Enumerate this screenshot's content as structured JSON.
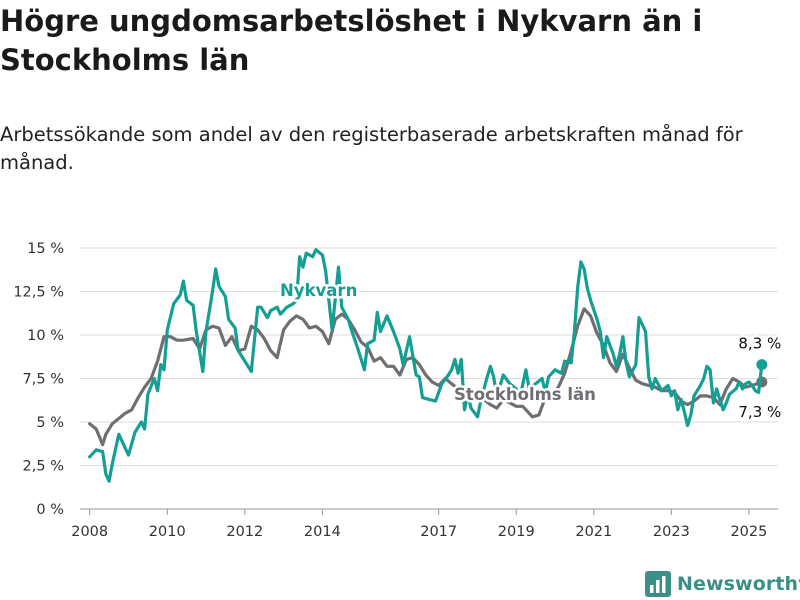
{
  "title": "Högre ungdomsarbetslöshet i Nykvarn än i Stockholms län",
  "subtitle": "Arbetssökande som andel av den registerbaserade arbetskraften månad för månad.",
  "logo_text": "Newsworthy",
  "colors": {
    "nykvarn": "#159e94",
    "stockholm": "#6e6e73",
    "grid": "#dddddd",
    "axis": "#999999",
    "logo": "#3c8f87"
  },
  "chart_data": {
    "type": "line",
    "title": "Högre ungdomsarbetslöshet i Nykvarn än i Stockholms län",
    "subtitle": "Arbetssökande som andel av den registerbaserade arbetskraften månad för månad.",
    "xlabel": "",
    "ylabel": "",
    "xlim": [
      "2007-10",
      "2025-10"
    ],
    "ylim": [
      0,
      15
    ],
    "grid": true,
    "y_ticks": [
      0,
      2.5,
      5,
      7.5,
      10,
      12.5,
      15
    ],
    "y_tick_labels": [
      "0 %",
      "2,5 %",
      "5 %",
      "7,5 %",
      "10 %",
      "12,5 %",
      "15 %"
    ],
    "x_ticks": [
      "2008-01",
      "2010-01",
      "2012-01",
      "2014-01",
      "2017-01",
      "2019-01",
      "2021-01",
      "2023-01",
      "2025-01"
    ],
    "x_tick_labels": [
      "2008",
      "2010",
      "2012",
      "2014",
      "2017",
      "2019",
      "2021",
      "2023",
      "2025"
    ],
    "series": [
      {
        "name": "Nykvarn",
        "color": "#159e94",
        "end_label": "8,3 %",
        "points": [
          [
            "2008-01",
            3.0
          ],
          [
            "2008-03",
            3.4
          ],
          [
            "2008-05",
            3.3
          ],
          [
            "2008-06",
            2.0
          ],
          [
            "2008-07",
            1.6
          ],
          [
            "2008-08",
            2.6
          ],
          [
            "2008-10",
            4.3
          ],
          [
            "2008-12",
            3.5
          ],
          [
            "2009-01",
            3.1
          ],
          [
            "2009-03",
            4.4
          ],
          [
            "2009-05",
            5.0
          ],
          [
            "2009-06",
            4.6
          ],
          [
            "2009-07",
            6.6
          ],
          [
            "2009-09",
            7.5
          ],
          [
            "2009-10",
            6.8
          ],
          [
            "2009-11",
            8.3
          ],
          [
            "2009-12",
            8.0
          ],
          [
            "2010-01",
            10.3
          ],
          [
            "2010-03",
            11.8
          ],
          [
            "2010-05",
            12.3
          ],
          [
            "2010-06",
            13.1
          ],
          [
            "2010-07",
            12.0
          ],
          [
            "2010-09",
            11.7
          ],
          [
            "2010-10",
            10.2
          ],
          [
            "2010-12",
            7.9
          ],
          [
            "2011-01",
            10.2
          ],
          [
            "2011-03",
            12.5
          ],
          [
            "2011-04",
            13.8
          ],
          [
            "2011-05",
            12.8
          ],
          [
            "2011-07",
            12.2
          ],
          [
            "2011-08",
            10.9
          ],
          [
            "2011-10",
            10.4
          ],
          [
            "2011-11",
            9.1
          ],
          [
            "2012-01",
            8.5
          ],
          [
            "2012-03",
            7.9
          ],
          [
            "2012-05",
            11.6
          ],
          [
            "2012-06",
            11.6
          ],
          [
            "2012-08",
            11.0
          ],
          [
            "2012-09",
            11.4
          ],
          [
            "2012-11",
            11.6
          ],
          [
            "2012-12",
            11.2
          ],
          [
            "2013-02",
            11.6
          ],
          [
            "2013-04",
            11.8
          ],
          [
            "2013-05",
            12.0
          ],
          [
            "2013-06",
            14.5
          ],
          [
            "2013-07",
            13.9
          ],
          [
            "2013-08",
            14.7
          ],
          [
            "2013-10",
            14.5
          ],
          [
            "2013-11",
            14.9
          ],
          [
            "2014-01",
            14.6
          ],
          [
            "2014-02",
            13.7
          ],
          [
            "2014-04",
            10.3
          ],
          [
            "2014-06",
            13.9
          ],
          [
            "2014-07",
            11.6
          ],
          [
            "2014-09",
            10.9
          ],
          [
            "2014-10",
            10.3
          ],
          [
            "2014-12",
            9.2
          ],
          [
            "2015-02",
            8.0
          ],
          [
            "2015-03",
            9.5
          ],
          [
            "2015-05",
            9.7
          ],
          [
            "2015-06",
            11.3
          ],
          [
            "2015-07",
            10.2
          ],
          [
            "2015-09",
            11.1
          ],
          [
            "2015-11",
            10.2
          ],
          [
            "2016-01",
            9.2
          ],
          [
            "2016-02",
            8.3
          ],
          [
            "2016-04",
            9.9
          ],
          [
            "2016-06",
            7.7
          ],
          [
            "2016-07",
            7.6
          ],
          [
            "2016-08",
            6.4
          ],
          [
            "2016-10",
            6.3
          ],
          [
            "2016-12",
            6.2
          ],
          [
            "2017-02",
            7.2
          ],
          [
            "2017-04",
            7.7
          ],
          [
            "2017-05",
            8.0
          ],
          [
            "2017-06",
            8.6
          ],
          [
            "2017-07",
            7.8
          ],
          [
            "2017-08",
            8.6
          ],
          [
            "2017-09",
            5.7
          ],
          [
            "2017-10",
            6.6
          ],
          [
            "2017-11",
            5.8
          ],
          [
            "2018-01",
            5.3
          ],
          [
            "2018-02",
            6.2
          ],
          [
            "2018-04",
            7.6
          ],
          [
            "2018-05",
            8.2
          ],
          [
            "2018-06",
            7.6
          ],
          [
            "2018-07",
            6.5
          ],
          [
            "2018-09",
            7.7
          ],
          [
            "2018-11",
            7.2
          ],
          [
            "2019-01",
            6.9
          ],
          [
            "2019-02",
            6.3
          ],
          [
            "2019-04",
            8.0
          ],
          [
            "2019-05",
            6.9
          ],
          [
            "2019-07",
            7.2
          ],
          [
            "2019-09",
            7.5
          ],
          [
            "2019-10",
            6.7
          ],
          [
            "2019-11",
            7.6
          ],
          [
            "2020-01",
            8.0
          ],
          [
            "2020-03",
            7.8
          ],
          [
            "2020-04",
            8.5
          ],
          [
            "2020-06",
            8.4
          ],
          [
            "2020-07",
            10.2
          ],
          [
            "2020-08",
            12.7
          ],
          [
            "2020-09",
            14.2
          ],
          [
            "2020-10",
            13.8
          ],
          [
            "2020-11",
            12.7
          ],
          [
            "2020-12",
            12.0
          ],
          [
            "2021-02",
            10.9
          ],
          [
            "2021-03",
            10.2
          ],
          [
            "2021-04",
            8.7
          ],
          [
            "2021-05",
            9.9
          ],
          [
            "2021-06",
            9.4
          ],
          [
            "2021-07",
            8.9
          ],
          [
            "2021-08",
            8.2
          ],
          [
            "2021-09",
            8.9
          ],
          [
            "2021-10",
            9.9
          ],
          [
            "2021-11",
            8.4
          ],
          [
            "2021-12",
            7.6
          ],
          [
            "2022-02",
            8.3
          ],
          [
            "2022-03",
            11.0
          ],
          [
            "2022-04",
            10.6
          ],
          [
            "2022-05",
            10.2
          ],
          [
            "2022-06",
            7.6
          ],
          [
            "2022-07",
            6.9
          ],
          [
            "2022-08",
            7.5
          ],
          [
            "2022-10",
            6.8
          ],
          [
            "2022-12",
            7.1
          ],
          [
            "2023-01",
            6.5
          ],
          [
            "2023-02",
            6.8
          ],
          [
            "2023-03",
            5.7
          ],
          [
            "2023-04",
            6.3
          ],
          [
            "2023-05",
            5.6
          ],
          [
            "2023-06",
            4.8
          ],
          [
            "2023-07",
            5.4
          ],
          [
            "2023-08",
            6.5
          ],
          [
            "2023-09",
            6.8
          ],
          [
            "2023-10",
            7.1
          ],
          [
            "2023-11",
            7.5
          ],
          [
            "2023-12",
            8.2
          ],
          [
            "2024-01",
            8.0
          ],
          [
            "2024-02",
            6.1
          ],
          [
            "2024-03",
            6.9
          ],
          [
            "2024-04",
            6.3
          ],
          [
            "2024-05",
            5.7
          ],
          [
            "2024-06",
            6.1
          ],
          [
            "2024-07",
            6.6
          ],
          [
            "2024-09",
            6.9
          ],
          [
            "2024-10",
            7.3
          ],
          [
            "2024-11",
            6.9
          ],
          [
            "2024-12",
            7.2
          ],
          [
            "2025-01",
            7.3
          ],
          [
            "2025-02",
            7.1
          ],
          [
            "2025-03",
            6.8
          ],
          [
            "2025-04",
            6.7
          ],
          [
            "2025-05",
            8.3
          ]
        ]
      },
      {
        "name": "Stockholms län",
        "color": "#6e6e73",
        "end_label": "7,3 %",
        "points": [
          [
            "2008-01",
            4.9
          ],
          [
            "2008-03",
            4.6
          ],
          [
            "2008-05",
            3.7
          ],
          [
            "2008-06",
            4.3
          ],
          [
            "2008-08",
            4.9
          ],
          [
            "2008-10",
            5.2
          ],
          [
            "2008-12",
            5.5
          ],
          [
            "2009-02",
            5.7
          ],
          [
            "2009-04",
            6.4
          ],
          [
            "2009-06",
            7.0
          ],
          [
            "2009-08",
            7.5
          ],
          [
            "2009-10",
            8.5
          ],
          [
            "2009-12",
            9.9
          ],
          [
            "2010-02",
            9.9
          ],
          [
            "2010-04",
            9.7
          ],
          [
            "2010-06",
            9.7
          ],
          [
            "2010-09",
            9.8
          ],
          [
            "2010-11",
            9.2
          ],
          [
            "2011-01",
            10.3
          ],
          [
            "2011-03",
            10.5
          ],
          [
            "2011-05",
            10.4
          ],
          [
            "2011-07",
            9.4
          ],
          [
            "2011-09",
            9.9
          ],
          [
            "2011-11",
            9.1
          ],
          [
            "2012-01",
            9.2
          ],
          [
            "2012-03",
            10.5
          ],
          [
            "2012-05",
            10.3
          ],
          [
            "2012-07",
            9.8
          ],
          [
            "2012-09",
            9.1
          ],
          [
            "2012-11",
            8.7
          ],
          [
            "2013-01",
            10.3
          ],
          [
            "2013-03",
            10.8
          ],
          [
            "2013-05",
            11.1
          ],
          [
            "2013-07",
            10.9
          ],
          [
            "2013-09",
            10.4
          ],
          [
            "2013-11",
            10.5
          ],
          [
            "2014-01",
            10.2
          ],
          [
            "2014-03",
            9.5
          ],
          [
            "2014-05",
            10.9
          ],
          [
            "2014-07",
            11.2
          ],
          [
            "2014-09",
            10.9
          ],
          [
            "2014-11",
            10.3
          ],
          [
            "2015-01",
            9.6
          ],
          [
            "2015-03",
            9.3
          ],
          [
            "2015-05",
            8.5
          ],
          [
            "2015-07",
            8.7
          ],
          [
            "2015-09",
            8.2
          ],
          [
            "2015-11",
            8.2
          ],
          [
            "2016-01",
            7.7
          ],
          [
            "2016-03",
            8.6
          ],
          [
            "2016-05",
            8.7
          ],
          [
            "2016-07",
            8.3
          ],
          [
            "2016-09",
            7.7
          ],
          [
            "2016-11",
            7.3
          ],
          [
            "2017-01",
            7.1
          ],
          [
            "2017-03",
            7.5
          ],
          [
            "2017-05",
            7.2
          ],
          [
            "2017-07",
            6.9
          ],
          [
            "2017-09",
            6.7
          ],
          [
            "2017-11",
            6.4
          ],
          [
            "2018-01",
            6.4
          ],
          [
            "2018-03",
            6.3
          ],
          [
            "2018-05",
            6.0
          ],
          [
            "2018-07",
            5.8
          ],
          [
            "2018-09",
            6.3
          ],
          [
            "2018-11",
            6.1
          ],
          [
            "2019-01",
            5.9
          ],
          [
            "2019-03",
            5.9
          ],
          [
            "2019-05",
            5.5
          ],
          [
            "2019-06",
            5.3
          ],
          [
            "2019-08",
            5.4
          ],
          [
            "2019-10",
            6.4
          ],
          [
            "2019-12",
            6.6
          ],
          [
            "2020-02",
            7.0
          ],
          [
            "2020-04",
            7.8
          ],
          [
            "2020-06",
            9.1
          ],
          [
            "2020-08",
            10.5
          ],
          [
            "2020-10",
            11.5
          ],
          [
            "2020-12",
            11.1
          ],
          [
            "2021-02",
            10.1
          ],
          [
            "2021-04",
            9.4
          ],
          [
            "2021-06",
            8.4
          ],
          [
            "2021-08",
            7.9
          ],
          [
            "2021-10",
            8.9
          ],
          [
            "2021-12",
            8.1
          ],
          [
            "2022-02",
            7.4
          ],
          [
            "2022-04",
            7.2
          ],
          [
            "2022-06",
            7.1
          ],
          [
            "2022-08",
            7.0
          ],
          [
            "2022-10",
            6.8
          ],
          [
            "2022-12",
            6.8
          ],
          [
            "2023-02",
            6.7
          ],
          [
            "2023-04",
            6.2
          ],
          [
            "2023-06",
            6.0
          ],
          [
            "2023-08",
            6.2
          ],
          [
            "2023-10",
            6.5
          ],
          [
            "2023-12",
            6.5
          ],
          [
            "2024-02",
            6.4
          ],
          [
            "2024-04",
            6.0
          ],
          [
            "2024-06",
            6.9
          ],
          [
            "2024-08",
            7.5
          ],
          [
            "2024-10",
            7.3
          ],
          [
            "2024-12",
            7.0
          ],
          [
            "2025-02",
            7.1
          ],
          [
            "2025-05",
            7.3
          ]
        ]
      }
    ],
    "series_labels": [
      "Nykvarn",
      "Stockholms län"
    ]
  }
}
